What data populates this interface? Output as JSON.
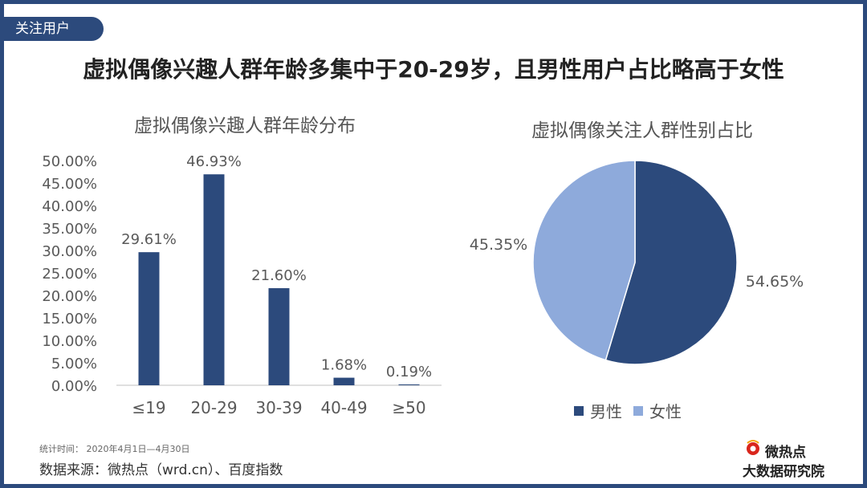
{
  "tag": "关注用户",
  "headline": "虚拟偶像兴趣人群年龄多集中于20-29岁，且男性用户占比略高于女性",
  "chart_data": [
    {
      "type": "bar",
      "title": "虚拟偶像兴趣人群年龄分布",
      "categories": [
        "≤19",
        "20-29",
        "30-39",
        "40-49",
        "≥50"
      ],
      "values": [
        29.61,
        46.93,
        21.6,
        1.68,
        0.19
      ],
      "value_labels": [
        "29.61%",
        "46.93%",
        "21.60%",
        "1.68%",
        "0.19%"
      ],
      "yticks": [
        "0.00%",
        "5.00%",
        "10.00%",
        "15.00%",
        "20.00%",
        "25.00%",
        "30.00%",
        "35.00%",
        "40.00%",
        "45.00%",
        "50.00%"
      ],
      "ylim": [
        0,
        50
      ],
      "grid": false,
      "color": "#2c4a7c"
    },
    {
      "type": "pie",
      "title": "虚拟偶像关注人群性别占比",
      "labels": [
        "男性",
        "女性"
      ],
      "values": [
        54.65,
        45.35
      ],
      "value_labels": [
        "54.65%",
        "45.35%"
      ],
      "colors": [
        "#2c4a7c",
        "#8eaadb"
      ],
      "legend": "bottom"
    }
  ],
  "footer": {
    "period": "统计时间： 2020年4月1日—4月30日",
    "source": "数据来源：微热点（wrd.cn）、百度指数"
  },
  "logo": {
    "line1": "微热点",
    "line2": "大数据研究院"
  }
}
